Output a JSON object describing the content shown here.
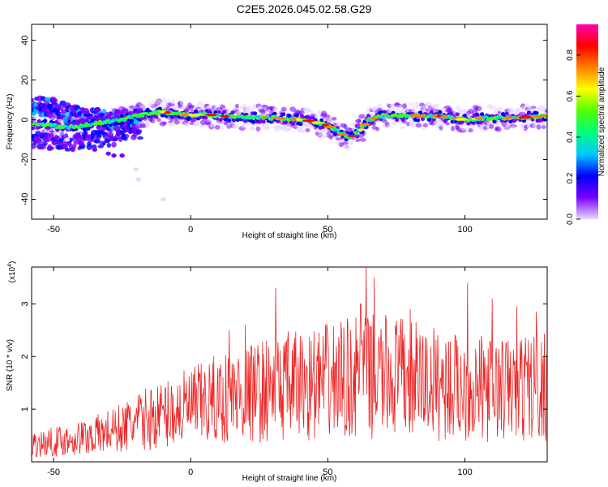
{
  "title": "C2E5.2026.045.02.58.G29",
  "chart_data": [
    {
      "type": "heatmap",
      "name": "spectrogram",
      "xlabel": "Height of straight line (km)",
      "ylabel": "Frequency (Hz)",
      "xlim": [
        -58,
        130
      ],
      "ylim": [
        -50,
        48
      ],
      "xticks": [
        -50,
        0,
        50,
        100
      ],
      "yticks": [
        -40,
        -20,
        0,
        20,
        40
      ],
      "ridge": {
        "x": [
          -57,
          -50,
          -45,
          -40,
          -35,
          -30,
          -25,
          -20,
          -15,
          -10,
          -5,
          0,
          5,
          10,
          20,
          30,
          40,
          45,
          50,
          55,
          58,
          62,
          65,
          70,
          80,
          90,
          100,
          110,
          120,
          130
        ],
        "y": [
          -2,
          -3,
          -4,
          -3,
          -2,
          -1,
          0,
          2,
          3,
          4,
          3,
          2,
          3,
          2,
          1,
          1,
          0,
          -1,
          -3,
          -7,
          -9,
          -5,
          0,
          2,
          2,
          2,
          0,
          1,
          1,
          2
        ]
      },
      "secondary_band": {
        "x": [
          -57,
          -50,
          -45,
          -40,
          -35,
          -30,
          -25,
          -20
        ],
        "y": [
          7,
          6,
          3,
          2,
          1,
          0,
          0,
          1
        ]
      },
      "scatter_points": {
        "x": [
          -35,
          -30,
          -28,
          -25,
          -40,
          -45,
          -20,
          -19,
          -10
        ],
        "y": [
          -15,
          -17,
          -18,
          -18,
          -12,
          -10,
          -25,
          -30,
          -40
        ]
      },
      "colorbar": {
        "label": "Normalized spectral amplitude",
        "range": [
          0,
          0.95
        ],
        "ticks": [
          "0.0",
          "0.2",
          "0.4",
          "0.6",
          "0.8"
        ],
        "tick_values": [
          0,
          0.2,
          0.4,
          0.6,
          0.8
        ],
        "colors": [
          "#e8d8ff",
          "#7a00ff",
          "#0000ff",
          "#00c8ff",
          "#00ff80",
          "#50ff00",
          "#ffff00",
          "#ff8000",
          "#ff0000",
          "#ff00b0"
        ]
      }
    },
    {
      "type": "line",
      "name": "snr",
      "xlabel": "Height of straight line (km)",
      "ylabel": "SNR (10 * v/v)",
      "scale_label": "(x10",
      "scale_exp": "4",
      "scale_close": ")",
      "xlim": [
        -58,
        130
      ],
      "ylim": [
        0,
        3.7
      ],
      "xticks": [
        -50,
        0,
        50,
        100
      ],
      "yticks": [
        1,
        2,
        3
      ],
      "color": "#ee2222",
      "envelope": {
        "x": [
          -58,
          -45,
          -35,
          -25,
          -15,
          -5,
          5,
          15,
          25,
          35,
          45,
          55,
          65,
          75,
          85,
          95,
          105,
          115,
          125,
          130
        ],
        "y": [
          0.35,
          0.45,
          0.55,
          0.7,
          0.9,
          1.05,
          1.2,
          1.35,
          1.45,
          1.55,
          1.6,
          1.7,
          1.75,
          1.75,
          1.65,
          1.55,
          1.5,
          1.5,
          1.55,
          1.6
        ]
      },
      "peaks": {
        "x": [
          31,
          62,
          64,
          67,
          101,
          110,
          119,
          126,
          80,
          20,
          14
        ],
        "y": [
          3.3,
          3.0,
          3.7,
          3.5,
          3.4,
          3.1,
          2.95,
          2.85,
          2.9,
          2.6,
          2.5
        ]
      }
    }
  ]
}
